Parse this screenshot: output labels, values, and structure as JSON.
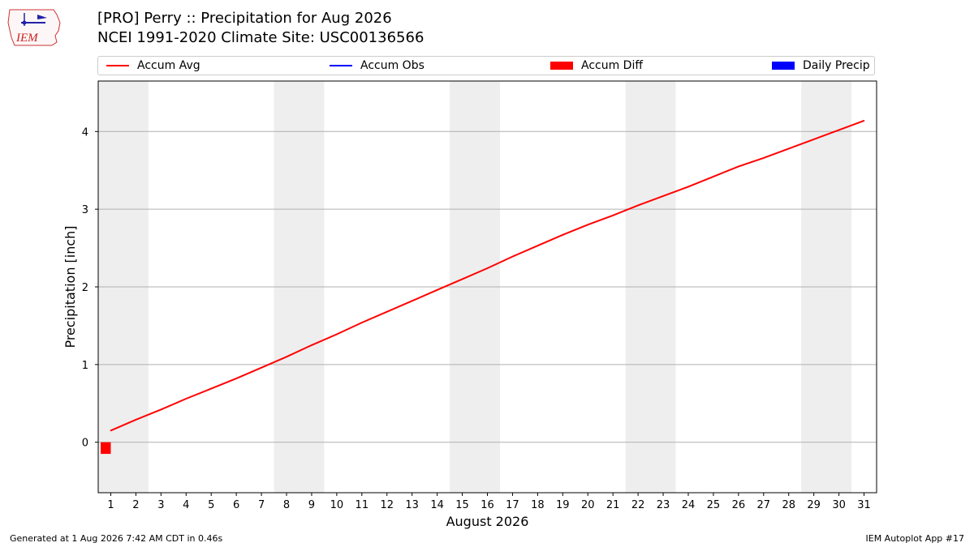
{
  "logo": {
    "text": "IEM"
  },
  "title_line1": "[PRO] Perry :: Precipitation for Aug 2026",
  "title_line2": "NCEI 1991-2020 Climate Site: USC00136566",
  "legend": [
    {
      "label": "Accum Avg",
      "color": "#ff0000",
      "kind": "line"
    },
    {
      "label": "Accum Obs",
      "color": "#0000ff",
      "kind": "line"
    },
    {
      "label": "Accum Diff",
      "color": "#ff0000",
      "kind": "box"
    },
    {
      "label": "Daily Precip",
      "color": "#0000ff",
      "kind": "box"
    }
  ],
  "footer_left": "Generated at 1 Aug 2026 7:42 AM CDT in 0.46s",
  "footer_right": "IEM Autoplot App #17",
  "chart_data": {
    "type": "line",
    "xlabel": "August 2026",
    "ylabel": "Precipitation [inch]",
    "xlim": [
      0.5,
      31.5
    ],
    "ylim": [
      -0.65,
      4.65
    ],
    "yticks": [
      0,
      1,
      2,
      3,
      4
    ],
    "x": [
      1,
      2,
      3,
      4,
      5,
      6,
      7,
      8,
      9,
      10,
      11,
      12,
      13,
      14,
      15,
      16,
      17,
      18,
      19,
      20,
      21,
      22,
      23,
      24,
      25,
      26,
      27,
      28,
      29,
      30,
      31
    ],
    "grid": "horizontal",
    "weekend_bands": [
      [
        0.5,
        2.5
      ],
      [
        7.5,
        9.5
      ],
      [
        14.5,
        16.5
      ],
      [
        21.5,
        23.5
      ],
      [
        28.5,
        30.5
      ]
    ],
    "series": [
      {
        "name": "Accum Avg",
        "color": "#ff0000",
        "values": [
          0.15,
          0.29,
          0.42,
          0.56,
          0.69,
          0.82,
          0.96,
          1.1,
          1.25,
          1.39,
          1.54,
          1.68,
          1.82,
          1.96,
          2.1,
          2.24,
          2.39,
          2.53,
          2.67,
          2.8,
          2.92,
          3.05,
          3.17,
          3.29,
          3.42,
          3.55,
          3.66,
          3.78,
          3.9,
          4.02,
          4.14
        ]
      }
    ],
    "accum_diff": [
      {
        "day": 1,
        "value": -0.15,
        "color": "#ff0000"
      }
    ]
  }
}
